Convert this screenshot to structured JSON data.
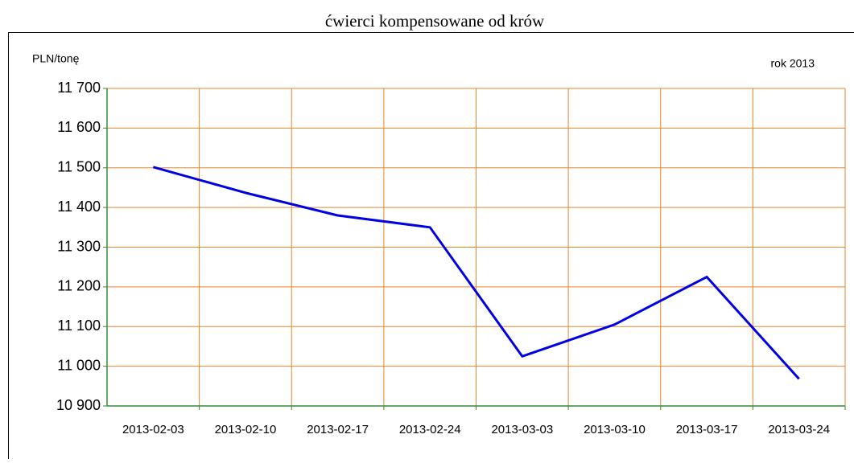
{
  "chart_data": {
    "type": "line",
    "title": "ćwierci kompensowane od krów",
    "y_label": "PLN/tonę",
    "annotation": "rok 2013",
    "categories": [
      "2013-02-03",
      "2013-02-10",
      "2013-02-17",
      "2013-02-24",
      "2013-03-03",
      "2013-03-10",
      "2013-03-17",
      "2013-03-24"
    ],
    "series": [
      {
        "name": "ćwierci kompensowane od krów",
        "color": "#0000e6",
        "values": [
          11502,
          11437,
          11380,
          11350,
          11025,
          11105,
          11225,
          10968
        ]
      }
    ],
    "ylim": [
      10900,
      11700
    ],
    "yticks": [
      {
        "value": 10900,
        "label": "10 900"
      },
      {
        "value": 11000,
        "label": "11 000"
      },
      {
        "value": 11100,
        "label": "11 100"
      },
      {
        "value": 11200,
        "label": "11 200"
      },
      {
        "value": 11300,
        "label": "11 300"
      },
      {
        "value": 11400,
        "label": "11 400"
      },
      {
        "value": 11500,
        "label": "11 500"
      },
      {
        "value": 11600,
        "label": "11 600"
      },
      {
        "value": 11700,
        "label": "11 700"
      }
    ],
    "grid": true,
    "grid_color": "#e8862a",
    "axis_color": "#3a8a3a"
  }
}
